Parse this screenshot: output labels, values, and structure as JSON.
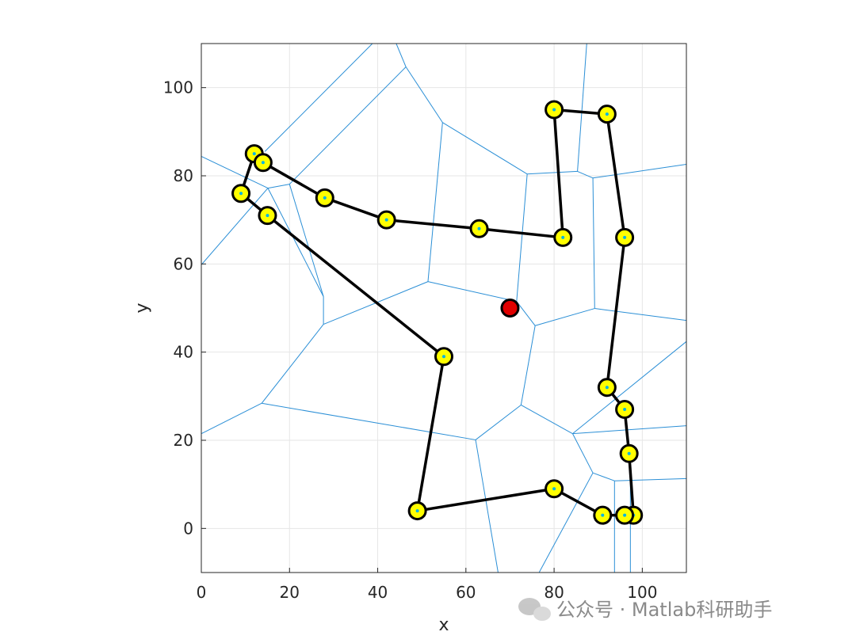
{
  "chart_data": {
    "type": "line",
    "xlabel": "x",
    "ylabel": "y",
    "xlim": [
      0,
      110
    ],
    "ylim": [
      -10,
      110
    ],
    "xticks": [
      0,
      20,
      40,
      60,
      80,
      100
    ],
    "yticks": [
      0,
      20,
      40,
      60,
      80,
      100
    ],
    "grid": true,
    "route": {
      "x": [
        80,
        92,
        96,
        92,
        96,
        97,
        98,
        96,
        91,
        80,
        49,
        55,
        15,
        9,
        12,
        14,
        28,
        42,
        63,
        82
      ],
      "y": [
        95,
        94,
        66,
        32,
        27,
        17,
        3,
        3,
        3,
        9,
        4,
        39,
        71,
        76,
        85,
        83,
        75,
        70,
        68,
        66
      ],
      "color": "#000000",
      "closed": true
    },
    "marker_color": "#ffff00",
    "seed_color": "#00b4e6",
    "target": {
      "x": 70,
      "y": 50,
      "color": "#e00000"
    },
    "edge_color": "#2b8fd6",
    "voronoi_edges": [
      [
        0,
        84.4,
        15.1,
        77.2
      ],
      [
        15.1,
        77.2,
        20.0,
        78.1
      ],
      [
        15.1,
        77.2,
        0,
        59.8
      ],
      [
        14.4,
        85.5,
        38.8,
        110
      ],
      [
        20.0,
        78.1,
        46.4,
        104.7
      ],
      [
        46.4,
        104.7,
        44.2,
        110
      ],
      [
        15.1,
        77.2,
        27.7,
        52.6
      ],
      [
        20.0,
        78.1,
        27.7,
        52.6
      ],
      [
        27.7,
        52.6,
        27.7,
        46.3
      ],
      [
        27.7,
        46.3,
        51.4,
        56.0
      ],
      [
        27.7,
        46.3,
        13.7,
        28.4
      ],
      [
        13.7,
        28.4,
        0,
        21.5
      ],
      [
        13.7,
        28.4,
        62.2,
        20.1
      ],
      [
        46.4,
        104.7,
        54.7,
        92.1
      ],
      [
        54.7,
        92.1,
        51.4,
        56.0
      ],
      [
        54.7,
        92.1,
        73.9,
        80.4
      ],
      [
        73.9,
        80.4,
        85.3,
        81.0
      ],
      [
        85.3,
        81.0,
        87.4,
        110
      ],
      [
        85.3,
        81.0,
        88.8,
        79.5
      ],
      [
        88.8,
        79.5,
        110,
        82.6
      ],
      [
        88.8,
        79.5,
        89.2,
        49.9
      ],
      [
        89.2,
        49.9,
        110,
        47.2
      ],
      [
        89.2,
        49.9,
        75.7,
        46.0
      ],
      [
        51.4,
        56.0,
        71.5,
        51.5
      ],
      [
        73.9,
        80.4,
        71.5,
        51.5
      ],
      [
        71.5,
        51.5,
        75.7,
        46.0
      ],
      [
        75.7,
        46.0,
        72.5,
        28.0
      ],
      [
        72.5,
        28.0,
        62.2,
        20.1
      ],
      [
        62.2,
        20.1,
        67.3,
        -10
      ],
      [
        72.5,
        28.0,
        84.2,
        21.5
      ],
      [
        84.2,
        21.5,
        110,
        42.4
      ],
      [
        84.2,
        21.5,
        110,
        23.3
      ],
      [
        84.2,
        21.5,
        88.8,
        12.6
      ],
      [
        88.8,
        12.6,
        76.6,
        -10
      ],
      [
        88.8,
        12.6,
        93.7,
        10.8
      ],
      [
        93.7,
        10.8,
        110,
        11.3
      ],
      [
        93.7,
        10.8,
        93.7,
        -10
      ],
      [
        97.3,
        10.4,
        97.3,
        -10
      ]
    ]
  },
  "watermark": "公众号 · Matlab科研助手"
}
